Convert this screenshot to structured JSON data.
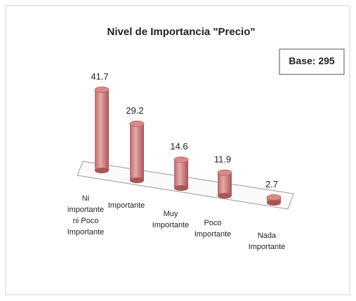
{
  "chart_data": {
    "type": "bar3d",
    "title": "Nivel de Importancia \"Precio\"",
    "annotation": "Base: 295",
    "categories": [
      [
        "Ni",
        "importante",
        "ni Poco",
        "Importante"
      ],
      [
        "Importante"
      ],
      [
        "Muy",
        "Importante"
      ],
      [
        "Poco",
        "Importante"
      ],
      [
        "Nada",
        "Importante"
      ]
    ],
    "values": [
      41.7,
      29.2,
      14.6,
      11.9,
      2.7
    ],
    "color": "#d98b8b"
  }
}
